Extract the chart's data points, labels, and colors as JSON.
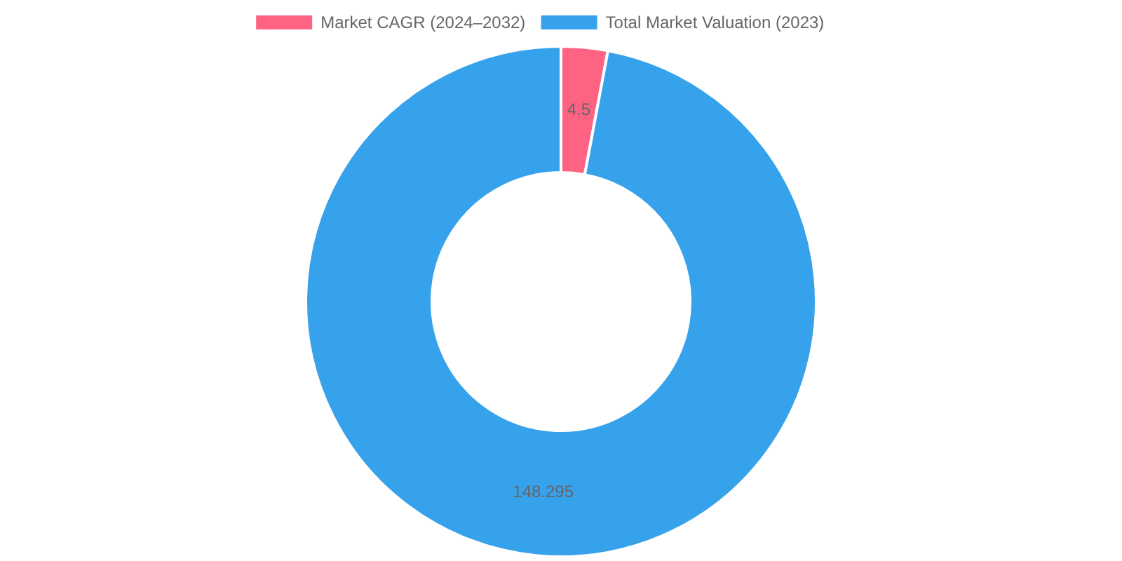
{
  "chart_data": {
    "type": "donut",
    "categories": [
      "Market CAGR (2024–2032)",
      "Total Market Valuation (2023)"
    ],
    "values": [
      4.5,
      148.295
    ],
    "colors": [
      "#ff6384",
      "#36a2eb"
    ],
    "data_labels": true,
    "legend": "top"
  }
}
